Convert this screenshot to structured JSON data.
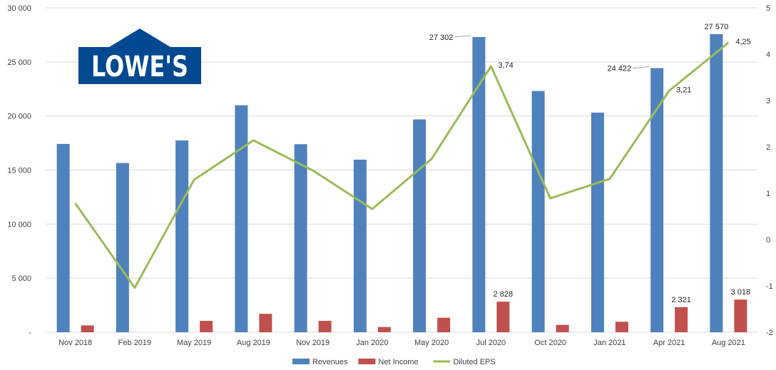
{
  "chart_data": {
    "type": "bar",
    "categories": [
      "Nov 2018",
      "Feb 2019",
      "May 2019",
      "Aug 2019",
      "Nov 2019",
      "Jan 2020",
      "May 2020",
      "Jul 2020",
      "Oct 2020",
      "Jan 2021",
      "Apr 2021",
      "Aug 2021"
    ],
    "series": [
      {
        "name": "Revenues",
        "kind": "bar",
        "axis": "left",
        "color": "#4f81bd",
        "values": [
          17415,
          15650,
          17740,
          20990,
          17390,
          15960,
          19680,
          27302,
          22310,
          20310,
          24422,
          27570
        ]
      },
      {
        "name": "Net Income",
        "kind": "bar",
        "axis": "left",
        "color": "#c0504d",
        "values": [
          630,
          -10,
          1050,
          1700,
          1050,
          480,
          1340,
          2828,
          680,
          970,
          2321,
          3018
        ]
      },
      {
        "name": "Diluted EPS",
        "kind": "line",
        "axis": "right",
        "color": "#9bbb59",
        "values": [
          0.78,
          -1.04,
          1.29,
          2.14,
          1.49,
          0.66,
          1.74,
          3.74,
          0.89,
          1.31,
          3.21,
          4.25
        ]
      }
    ],
    "left_axis": {
      "min": 0,
      "max": 30000,
      "ticks": [
        0,
        5000,
        10000,
        15000,
        20000,
        25000,
        30000
      ],
      "tick_labels": [
        "-",
        "5 000",
        "10 000",
        "15 000",
        "20 000",
        "25 000",
        "30 000"
      ]
    },
    "right_axis": {
      "min": -2,
      "max": 5,
      "ticks": [
        -2,
        -1,
        0,
        1,
        2,
        3,
        4,
        5
      ],
      "tick_labels": [
        "-2",
        "-1",
        "0",
        "1",
        "2",
        "3",
        "4",
        "5"
      ]
    },
    "data_labels": [
      {
        "series": "Revenues",
        "index": 7,
        "text": "27 302",
        "side": "left-leader"
      },
      {
        "series": "Revenues",
        "index": 10,
        "text": "24 422",
        "side": "left-leader"
      },
      {
        "series": "Revenues",
        "index": 11,
        "text": "27 570",
        "side": "above"
      },
      {
        "series": "Net Income",
        "index": 7,
        "text": "2 828",
        "side": "above"
      },
      {
        "series": "Net Income",
        "index": 10,
        "text": "2 321",
        "side": "above"
      },
      {
        "series": "Net Income",
        "index": 11,
        "text": "3 018",
        "side": "above"
      },
      {
        "series": "Diluted EPS",
        "index": 7,
        "text": "3,74",
        "side": "right"
      },
      {
        "series": "Diluted EPS",
        "index": 10,
        "text": "3,21",
        "side": "right"
      },
      {
        "series": "Diluted EPS",
        "index": 11,
        "text": "4,25",
        "side": "right"
      }
    ],
    "grid": true,
    "legend": "bottom",
    "logo": {
      "text": "LOWE'S",
      "color": "#004990"
    }
  }
}
